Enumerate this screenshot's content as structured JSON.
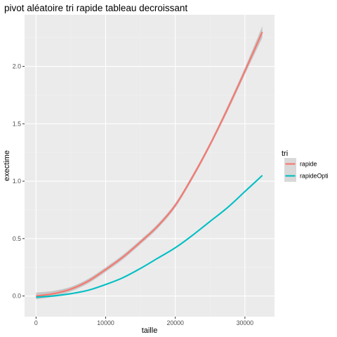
{
  "chart_data": {
    "type": "line",
    "title": "pivot aléatoire tri rapide tableau decroissant",
    "xlabel": "taille",
    "ylabel": "exectime",
    "xlim": [
      -1650,
      34250
    ],
    "ylim": [
      -0.18,
      2.45
    ],
    "x_ticks": [
      0,
      10000,
      20000,
      30000
    ],
    "x_tick_labels": [
      "0",
      "10000",
      "20000",
      "30000"
    ],
    "y_ticks": [
      0.0,
      0.5,
      1.0,
      1.5,
      2.0
    ],
    "y_tick_labels": [
      "0.0",
      "0.5",
      "1.0",
      "1.5",
      "2.0"
    ],
    "grid": true,
    "legend": {
      "title": "tri",
      "position": "right"
    },
    "series": [
      {
        "name": "rapide",
        "color": "#F8766D",
        "confidence_band": true,
        "x": [
          0,
          2500,
          5000,
          7500,
          10000,
          12500,
          15000,
          17500,
          20000,
          22500,
          25000,
          27500,
          30000,
          32500
        ],
        "y": [
          0.0,
          0.02,
          0.06,
          0.13,
          0.23,
          0.34,
          0.47,
          0.61,
          0.79,
          1.04,
          1.32,
          1.63,
          1.96,
          2.3
        ],
        "ci_halfwidth": [
          0.03,
          0.025,
          0.02,
          0.02,
          0.02,
          0.02,
          0.02,
          0.02,
          0.02,
          0.02,
          0.02,
          0.025,
          0.03,
          0.05
        ]
      },
      {
        "name": "rapideOpti",
        "color": "#00BFC4",
        "confidence_band": true,
        "x": [
          0,
          2500,
          5000,
          7500,
          10000,
          12500,
          15000,
          17500,
          20000,
          22500,
          25000,
          27500,
          30000,
          32500
        ],
        "y": [
          -0.01,
          0.0,
          0.02,
          0.05,
          0.1,
          0.16,
          0.24,
          0.33,
          0.42,
          0.53,
          0.65,
          0.77,
          0.91,
          1.05
        ],
        "ci_halfwidth": [
          0.005,
          0.004,
          0.004,
          0.004,
          0.004,
          0.004,
          0.004,
          0.004,
          0.004,
          0.004,
          0.004,
          0.004,
          0.005,
          0.006
        ]
      }
    ]
  }
}
